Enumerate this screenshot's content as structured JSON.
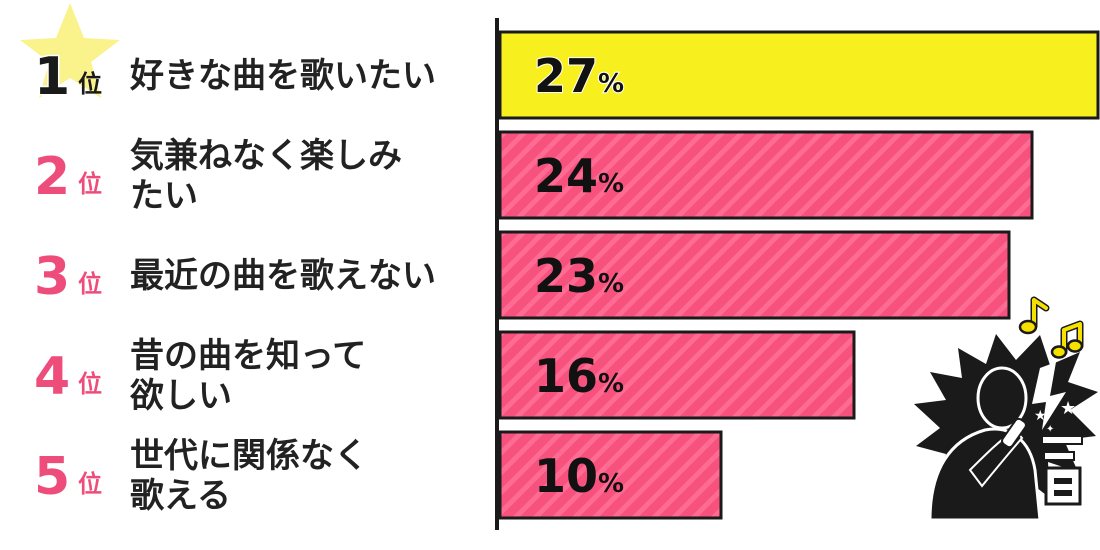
{
  "chart_data": {
    "type": "bar",
    "orientation": "horizontal",
    "categories": [
      "好きな曲を歌いたい",
      "気兼ねなく楽しみたい",
      "最近の曲を歌えない",
      "昔の曲を知って欲しい",
      "世代に関係なく歌える"
    ],
    "label_lines": [
      [
        "好きな曲を歌いたい"
      ],
      [
        "気兼ねなく楽しみ",
        "たい"
      ],
      [
        "最近の曲を歌えない"
      ],
      [
        "昔の曲を知って",
        "欲しい"
      ],
      [
        "世代に関係なく",
        "歌える"
      ]
    ],
    "ranks": [
      "1",
      "2",
      "3",
      "4",
      "5"
    ],
    "rank_suffix": "位",
    "values": [
      27,
      24,
      23,
      16,
      10
    ],
    "value_suffix": "%",
    "xlim": [
      0,
      27
    ],
    "colors": {
      "top_bar": "#f7ef1e",
      "bar": "#f7517e",
      "bar_stripe": "#ff6b92",
      "rank_top": "#1a1a1a",
      "rank": "#ee4d7c",
      "star": "#faf28a",
      "note": "#f5e000"
    },
    "illustration": "singer-with-microphone-icon"
  }
}
